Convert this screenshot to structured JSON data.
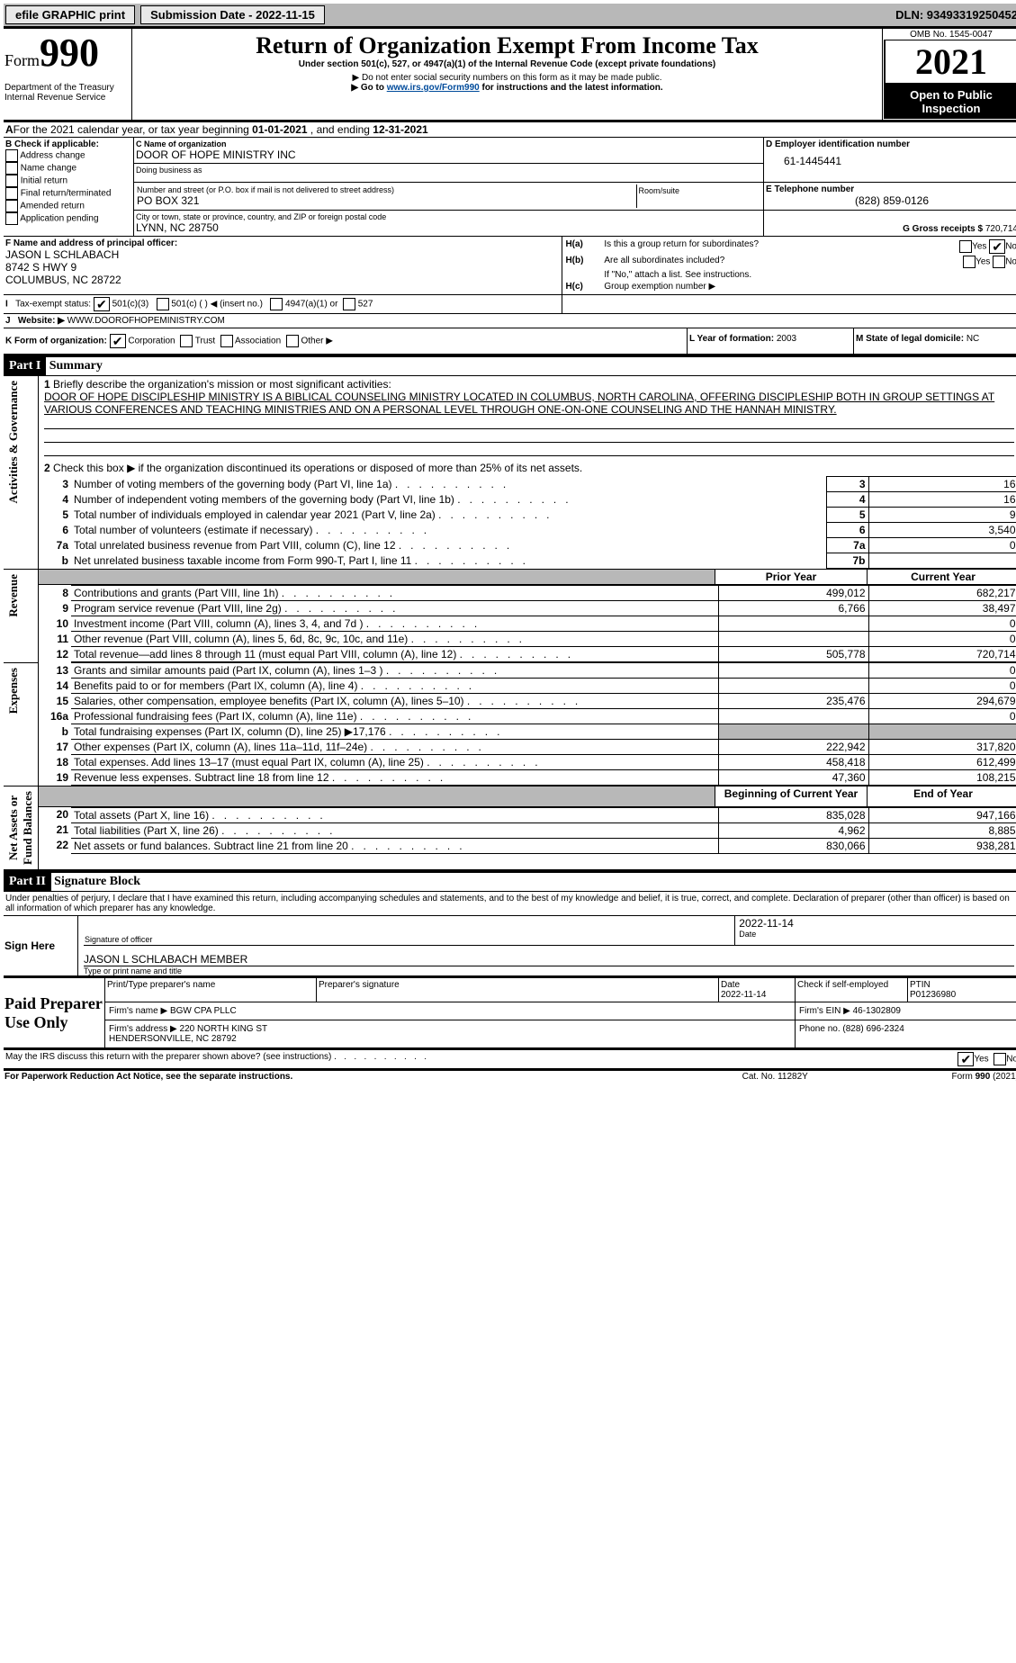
{
  "topbar": {
    "efile": "efile GRAPHIC print",
    "sub_label": "Submission Date - 2022-11-15",
    "dln": "DLN: 93493319250452"
  },
  "header": {
    "form_small": "Form",
    "form_big": "990",
    "title": "Return of Organization Exempt From Income Tax",
    "subtitle": "Under section 501(c), 527, or 4947(a)(1) of the Internal Revenue Code (except private foundations)",
    "note1": "▶ Do not enter social security numbers on this form as it may be made public.",
    "note2_pre": "▶ Go to ",
    "note2_link": "www.irs.gov/Form990",
    "note2_post": " for instructions and the latest information.",
    "dept": "Department of the Treasury\nInternal Revenue Service",
    "omb": "OMB No. 1545-0047",
    "year": "2021",
    "open": "Open to Public Inspection"
  },
  "A": {
    "text_pre": "For the 2021 calendar year, or tax year beginning ",
    "begin": "01-01-2021",
    "mid": "   , and ending ",
    "end": "12-31-2021"
  },
  "B": {
    "label": "B Check if applicable:",
    "items": [
      "Address change",
      "Name change",
      "Initial return",
      "Final return/terminated",
      "Amended return",
      "Application pending"
    ]
  },
  "C": {
    "name_lbl": "C Name of organization",
    "name": "DOOR OF HOPE MINISTRY INC",
    "dba_lbl": "Doing business as",
    "dba": "",
    "street_lbl": "Number and street (or P.O. box if mail is not delivered to street address)",
    "room_lbl": "Room/suite",
    "street": "PO BOX 321",
    "city_lbl": "City or town, state or province, country, and ZIP or foreign postal code",
    "city": "LYNN, NC  28750"
  },
  "D": {
    "lbl": "D Employer identification number",
    "val": "61-1445441"
  },
  "E": {
    "lbl": "E Telephone number",
    "val": "(828) 859-0126"
  },
  "G": {
    "lbl": "G Gross receipts $",
    "val": "720,714"
  },
  "F": {
    "lbl": "F  Name and address of principal officer:",
    "name": "JASON L SCHLABACH",
    "addr1": "8742 S HWY 9",
    "addr2": "COLUMBUS, NC  28722"
  },
  "H": {
    "a": "Is this a group return for subordinates?",
    "b": "Are all subordinates included?",
    "b_note": "If \"No,\" attach a list. See instructions.",
    "c": "Group exemption number ▶",
    "ha_lbl": "H(a)",
    "hb_lbl": "H(b)",
    "hc_lbl": "H(c)",
    "yes": "Yes",
    "no": "No"
  },
  "I": {
    "lbl": "Tax-exempt status:",
    "opts": [
      "501(c)(3)",
      "501(c) (   ) ◀ (insert no.)",
      "4947(a)(1) or",
      "527"
    ]
  },
  "J": {
    "lbl": "Website: ▶",
    "val": " WWW.DOOROFHOPEMINISTRY.COM"
  },
  "K": {
    "lbl": "K Form of organization:",
    "opts": [
      "Corporation",
      "Trust",
      "Association",
      "Other ▶"
    ]
  },
  "L": {
    "lbl": "L Year of formation:",
    "val": "2003"
  },
  "M": {
    "lbl": "M State of legal domicile:",
    "val": "NC"
  },
  "part1": {
    "hdr": "Part I",
    "title": "Summary"
  },
  "summary": {
    "line1_lbl": "Briefly describe the organization's mission or most significant activities:",
    "line1_txt": "DOOR OF HOPE DISCIPLESHIP MINISTRY IS A BIBLICAL COUNSELING MINISTRY LOCATED IN COLUMBUS, NORTH CAROLINA, OFFERING DISCIPLESHIP BOTH IN GROUP SETTINGS AT VARIOUS CONFERENCES AND TEACHING MINISTRIES AND ON A PERSONAL LEVEL THROUGH ONE-ON-ONE COUNSELING AND THE HANNAH MINISTRY.",
    "line2": "Check this box ▶       if the organization discontinued its operations or disposed of more than 25% of its net assets.",
    "rows_top": [
      {
        "n": "3",
        "t": "Number of voting members of the governing body (Part VI, line 1a)",
        "box": "3",
        "v": "16"
      },
      {
        "n": "4",
        "t": "Number of independent voting members of the governing body (Part VI, line 1b)",
        "box": "4",
        "v": "16"
      },
      {
        "n": "5",
        "t": "Total number of individuals employed in calendar year 2021 (Part V, line 2a)",
        "box": "5",
        "v": "9"
      },
      {
        "n": "6",
        "t": "Total number of volunteers (estimate if necessary)",
        "box": "6",
        "v": "3,540"
      },
      {
        "n": "7a",
        "t": "Total unrelated business revenue from Part VIII, column (C), line 12",
        "box": "7a",
        "v": "0"
      },
      {
        "n": " b",
        "t": "Net unrelated business taxable income from Form 990-T, Part I, line 11",
        "box": "7b",
        "v": ""
      }
    ],
    "prior_hdr": "Prior Year",
    "curr_hdr": "Current Year",
    "rev_rows": [
      {
        "n": "8",
        "t": "Contributions and grants (Part VIII, line 1h)",
        "p": "499,012",
        "c": "682,217"
      },
      {
        "n": "9",
        "t": "Program service revenue (Part VIII, line 2g)",
        "p": "6,766",
        "c": "38,497"
      },
      {
        "n": "10",
        "t": "Investment income (Part VIII, column (A), lines 3, 4, and 7d )",
        "p": "",
        "c": "0"
      },
      {
        "n": "11",
        "t": "Other revenue (Part VIII, column (A), lines 5, 6d, 8c, 9c, 10c, and 11e)",
        "p": "",
        "c": "0"
      },
      {
        "n": "12",
        "t": "Total revenue—add lines 8 through 11 (must equal Part VIII, column (A), line 12)",
        "p": "505,778",
        "c": "720,714"
      }
    ],
    "exp_rows": [
      {
        "n": "13",
        "t": "Grants and similar amounts paid (Part IX, column (A), lines 1–3 )",
        "p": "",
        "c": "0"
      },
      {
        "n": "14",
        "t": "Benefits paid to or for members (Part IX, column (A), line 4)",
        "p": "",
        "c": "0"
      },
      {
        "n": "15",
        "t": "Salaries, other compensation, employee benefits (Part IX, column (A), lines 5–10)",
        "p": "235,476",
        "c": "294,679"
      },
      {
        "n": "16a",
        "t": "Professional fundraising fees (Part IX, column (A), line 11e)",
        "p": "",
        "c": "0"
      },
      {
        "n": " b",
        "t": "Total fundraising expenses (Part IX, column (D), line 25) ▶17,176",
        "p": "GRAY",
        "c": "GRAY"
      },
      {
        "n": "17",
        "t": "Other expenses (Part IX, column (A), lines 11a–11d, 11f–24e)",
        "p": "222,942",
        "c": "317,820"
      },
      {
        "n": "18",
        "t": "Total expenses. Add lines 13–17 (must equal Part IX, column (A), line 25)",
        "p": "458,418",
        "c": "612,499"
      },
      {
        "n": "19",
        "t": "Revenue less expenses. Subtract line 18 from line 12",
        "p": "47,360",
        "c": "108,215"
      }
    ],
    "na_hdr1": "Beginning of Current Year",
    "na_hdr2": "End of Year",
    "na_rows": [
      {
        "n": "20",
        "t": "Total assets (Part X, line 16)",
        "p": "835,028",
        "c": "947,166"
      },
      {
        "n": "21",
        "t": "Total liabilities (Part X, line 26)",
        "p": "4,962",
        "c": "8,885"
      },
      {
        "n": "22",
        "t": "Net assets or fund balances. Subtract line 21 from line 20",
        "p": "830,066",
        "c": "938,281"
      }
    ],
    "vlabels": {
      "ag": "Activities & Governance",
      "rev": "Revenue",
      "exp": "Expenses",
      "na": "Net Assets or\nFund Balances"
    }
  },
  "part2": {
    "hdr": "Part II",
    "title": "Signature Block"
  },
  "sig": {
    "decl": "Under penalties of perjury, I declare that I have examined this return, including accompanying schedules and statements, and to the best of my knowledge and belief, it is true, correct, and complete. Declaration of preparer (other than officer) is based on all information of which preparer has any knowledge.",
    "sign_here": "Sign Here",
    "sig_officer": "Signature of officer",
    "date": "Date",
    "sig_date": "2022-11-14",
    "name_title": "JASON L SCHLABACH  MEMBER",
    "type_name": "Type or print name and title",
    "paid": "Paid Preparer Use Only",
    "p_name_h": "Print/Type preparer's name",
    "p_sig_h": "Preparer's signature",
    "p_date_h": "Date",
    "p_date": "2022-11-14",
    "p_check": "Check         if self-employed",
    "ptin_h": "PTIN",
    "ptin": "P01236980",
    "firm_name": "Firm's name    ▶ BGW CPA PLLC",
    "firm_ein": "Firm's EIN ▶ 46-1302809",
    "firm_addr_lbl": "Firm's address ▶",
    "firm_addr": "220 NORTH KING ST\nHENDERSONVILLE, NC  28792",
    "firm_phone": "Phone no. (828) 696-2324",
    "may_irs": "May the IRS discuss this return with the preparer shown above? (see instructions)"
  },
  "footer": {
    "pra": "For Paperwork Reduction Act Notice, see the separate instructions.",
    "cat": "Cat. No. 11282Y",
    "form": "Form 990 (2021)"
  }
}
